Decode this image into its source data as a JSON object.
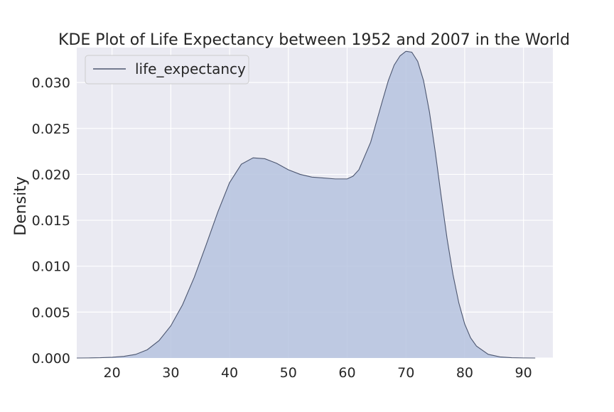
{
  "chart_data": {
    "type": "area",
    "title": "KDE Plot of Life Expectancy between 1952 and 2007 in the World",
    "xlabel": "",
    "ylabel": "Density",
    "xlim": [
      14,
      95
    ],
    "ylim": [
      0,
      0.0338
    ],
    "x_ticks": [
      20,
      30,
      40,
      50,
      60,
      70,
      80,
      90
    ],
    "x_tick_labels": [
      "20",
      "30",
      "40",
      "50",
      "60",
      "70",
      "80",
      "90"
    ],
    "y_ticks": [
      0,
      0.005,
      0.01,
      0.015,
      0.02,
      0.025,
      0.03
    ],
    "y_tick_labels": [
      "0.000",
      "0.005",
      "0.010",
      "0.015",
      "0.020",
      "0.025",
      "0.030"
    ],
    "grid": true,
    "legend_position": "top-left",
    "series": [
      {
        "name": "life_expectancy",
        "line_color": "#4c5670",
        "fill_color": "#b6c3df",
        "x": [
          14,
          16,
          18,
          20,
          22,
          24,
          26,
          28,
          30,
          32,
          34,
          36,
          38,
          40,
          42,
          44,
          46,
          48,
          50,
          52,
          54,
          56,
          58,
          60,
          61,
          62,
          64,
          66,
          67,
          68,
          69,
          70,
          71,
          72,
          73,
          74,
          75,
          76,
          77,
          78,
          79,
          80,
          81,
          82,
          84,
          86,
          88,
          90,
          92
        ],
        "y": [
          0.0,
          1e-05,
          3e-05,
          8e-05,
          0.00018,
          0.00039,
          0.0009,
          0.0019,
          0.0035,
          0.0058,
          0.0088,
          0.0123,
          0.0159,
          0.0191,
          0.0211,
          0.0218,
          0.0217,
          0.0212,
          0.0205,
          0.02,
          0.0197,
          0.0196,
          0.0195,
          0.0195,
          0.0198,
          0.0205,
          0.0235,
          0.028,
          0.0302,
          0.0319,
          0.0329,
          0.0334,
          0.0333,
          0.0323,
          0.0302,
          0.0268,
          0.0224,
          0.0176,
          0.013,
          0.0091,
          0.006,
          0.0037,
          0.0022,
          0.0013,
          0.0004,
          0.00012,
          3e-05,
          1e-05,
          0.0
        ]
      }
    ]
  }
}
